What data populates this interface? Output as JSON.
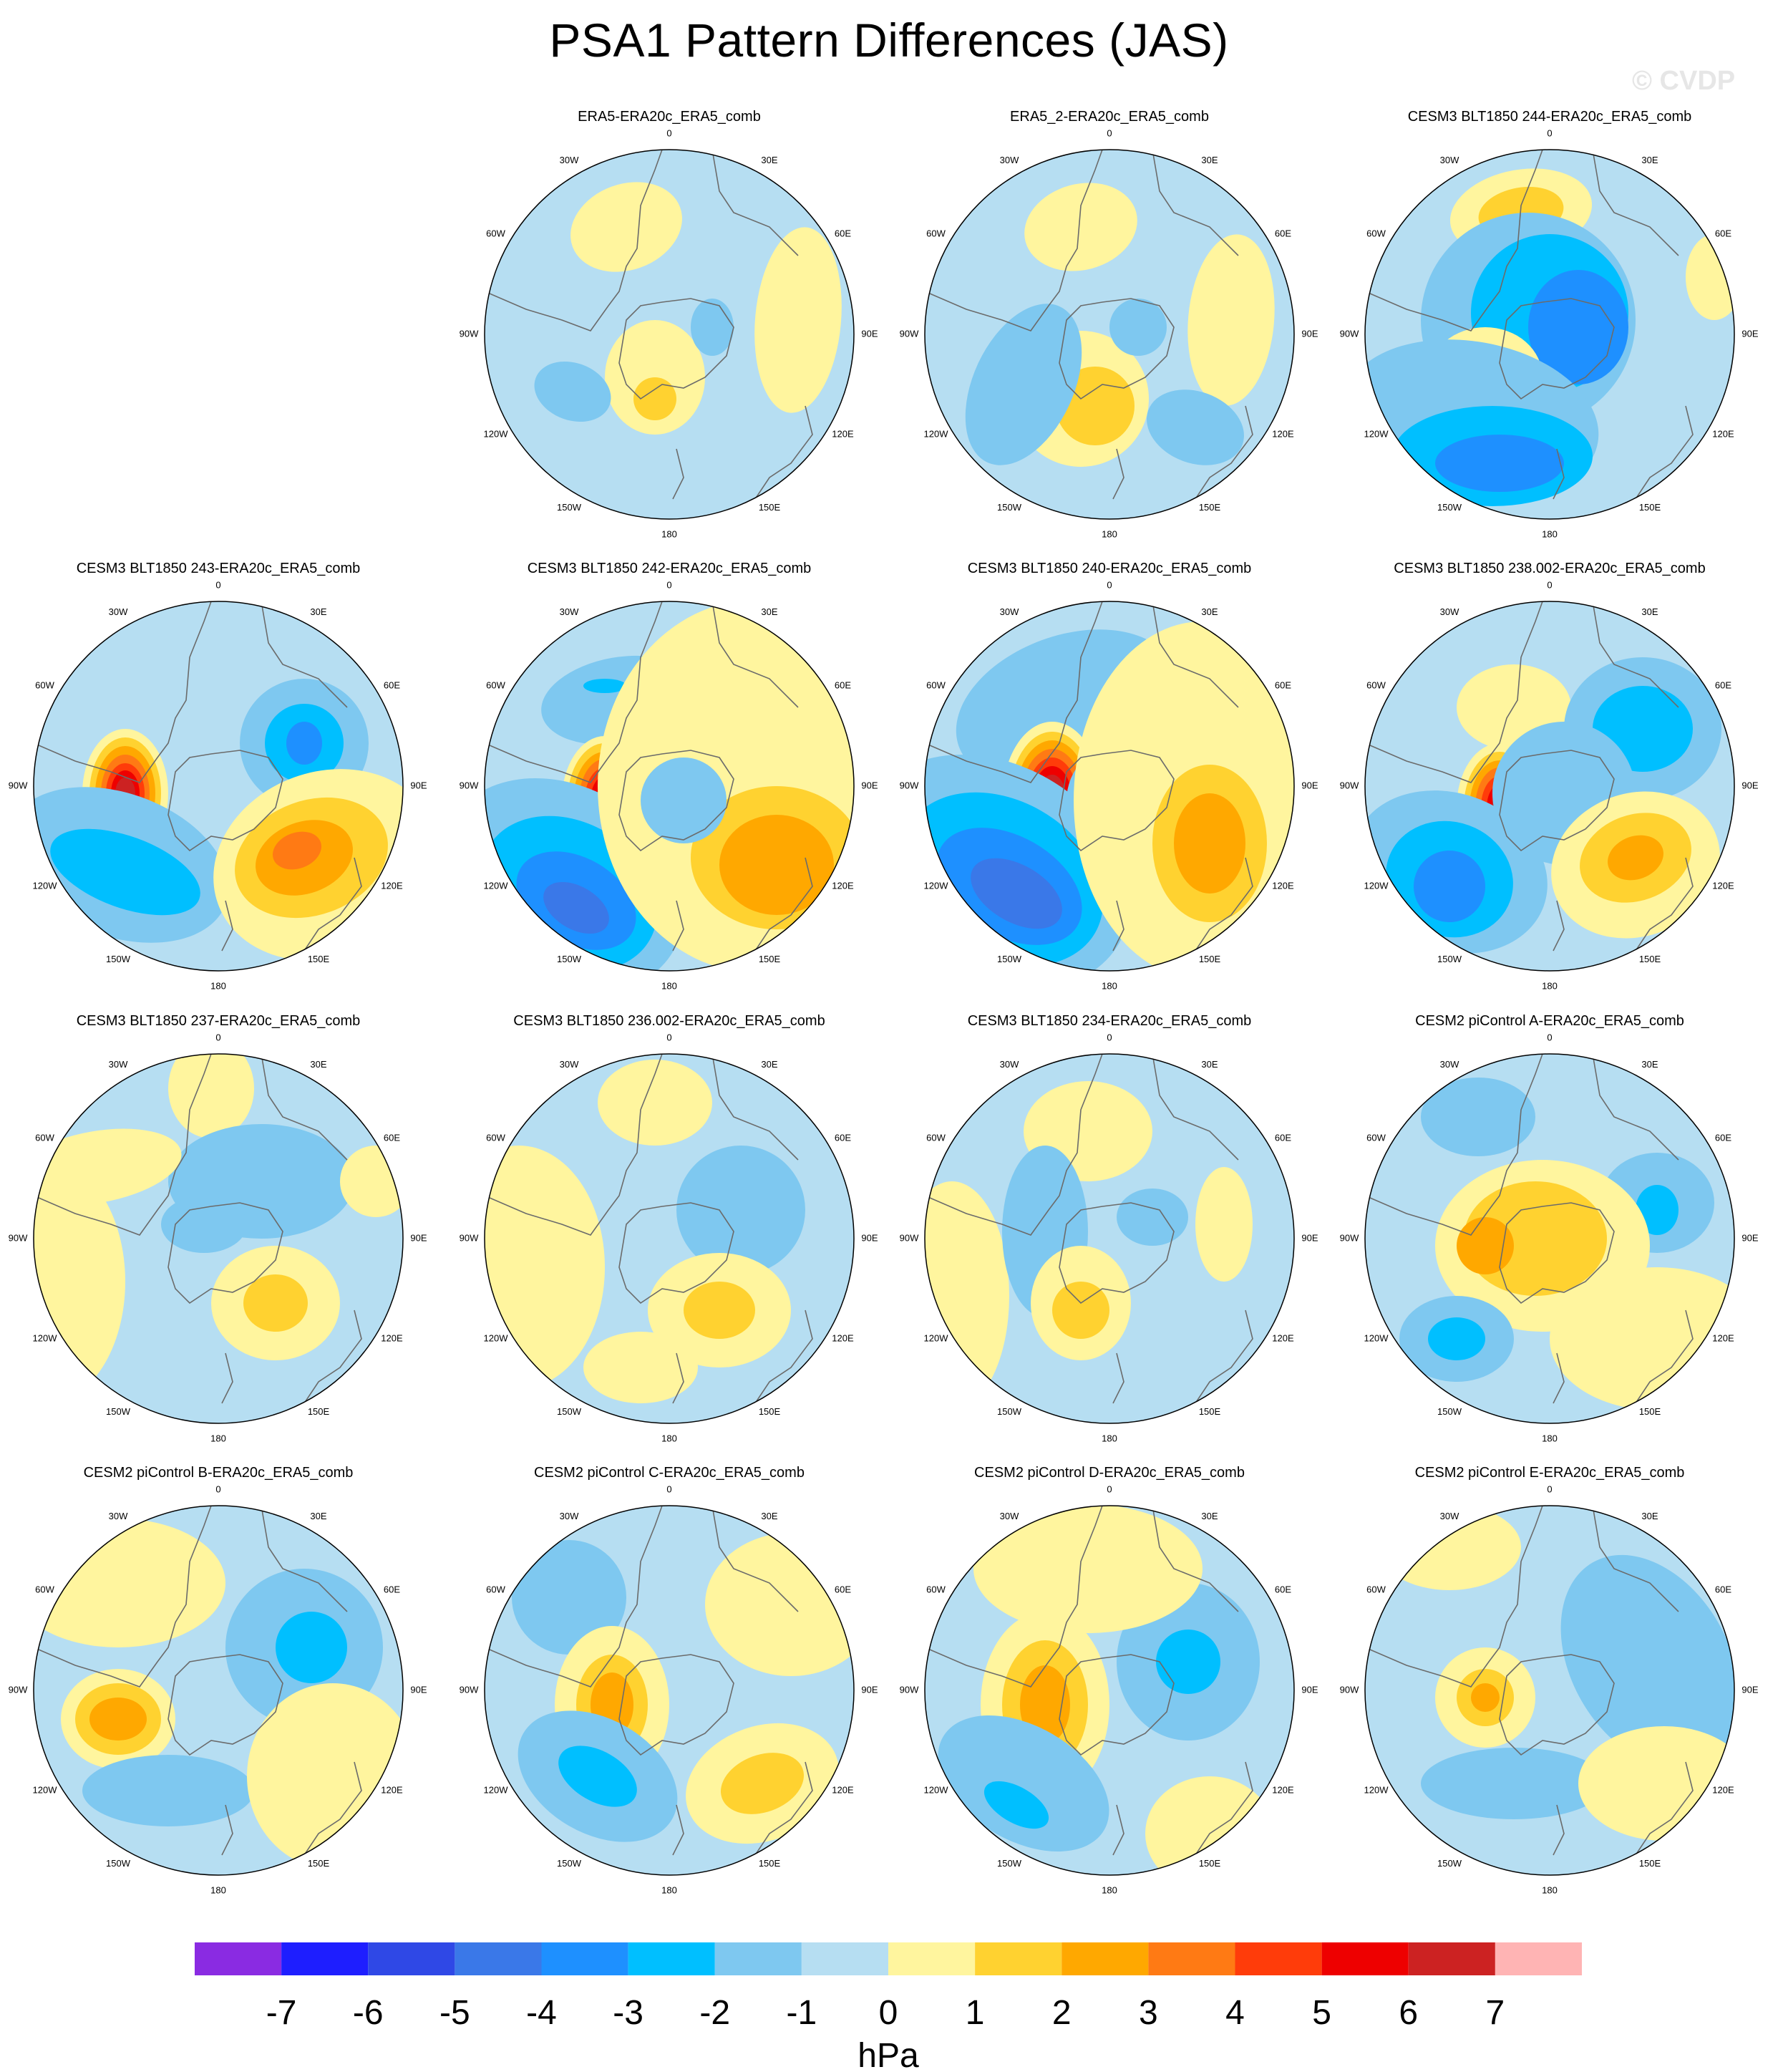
{
  "title": "PSA1 Pattern Differences (JAS)",
  "watermark": "© CVDP",
  "lon_labels": [
    "0",
    "30E",
    "60E",
    "90E",
    "120E",
    "150E",
    "180",
    "150W",
    "120W",
    "90W",
    "60W",
    "30W"
  ],
  "colorbar": {
    "unit": "hPa",
    "labels": [
      "-7",
      "-6",
      "-5",
      "-4",
      "-3",
      "-2",
      "-1",
      "0",
      "1",
      "2",
      "3",
      "4",
      "5",
      "6",
      "7"
    ],
    "colors": [
      "#8a2be2",
      "#1e1eff",
      "#2f48e6",
      "#3a78e8",
      "#1e90ff",
      "#00bfff",
      "#7ec8f0",
      "#b6def2",
      "#fff59e",
      "#ffd230",
      "#ffa800",
      "#ff7a14",
      "#ff3c0a",
      "#ee0000",
      "#cc2222",
      "#ffb4b4"
    ]
  },
  "panels": [
    {
      "title": "ERA5-ERA20c_ERA5_comb"
    },
    {
      "title": "ERA5_2-ERA20c_ERA5_comb"
    },
    {
      "title": "CESM3 BLT1850 244-ERA20c_ERA5_comb"
    },
    {
      "title": "CESM3 BLT1850 243-ERA20c_ERA5_comb"
    },
    {
      "title": "CESM3 BLT1850 242-ERA20c_ERA5_comb"
    },
    {
      "title": "CESM3 BLT1850 240-ERA20c_ERA5_comb"
    },
    {
      "title": "CESM3 BLT1850 238.002-ERA20c_ERA5_comb"
    },
    {
      "title": "CESM3 BLT1850 237-ERA20c_ERA5_comb"
    },
    {
      "title": "CESM3 BLT1850 236.002-ERA20c_ERA5_comb"
    },
    {
      "title": "CESM3 BLT1850 234-ERA20c_ERA5_comb"
    },
    {
      "title": "CESM2 piControl A-ERA20c_ERA5_comb"
    },
    {
      "title": "CESM2 piControl B-ERA20c_ERA5_comb"
    },
    {
      "title": "CESM2 piControl C-ERA20c_ERA5_comb"
    },
    {
      "title": "CESM2 piControl D-ERA20c_ERA5_comb"
    },
    {
      "title": "CESM2 piControl E-ERA20c_ERA5_comb"
    }
  ]
}
